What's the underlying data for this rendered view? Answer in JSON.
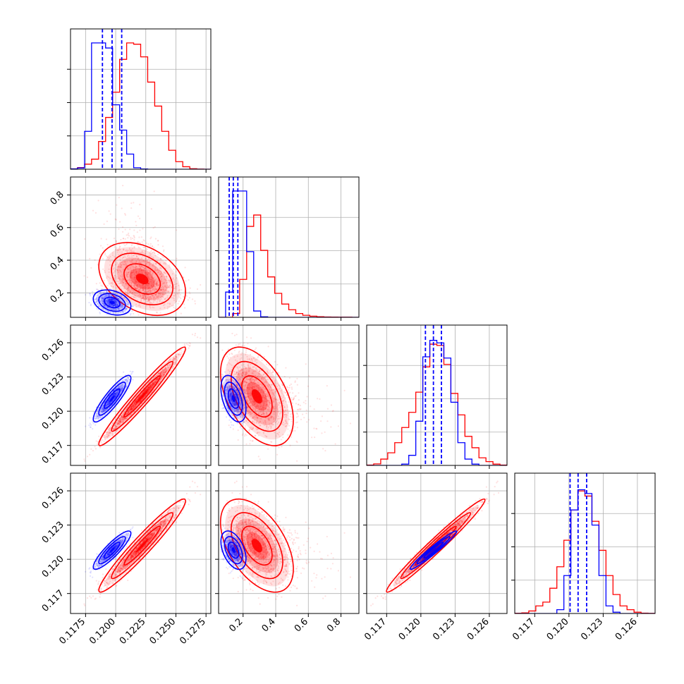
{
  "chart_data": {
    "type": "corner",
    "grid": true,
    "title": "",
    "colors": {
      "blue": "#0000ff",
      "red": "#ff0000",
      "grid": "#b0b0b0",
      "axis": "#000000"
    },
    "series": [
      {
        "color": "#0000ff",
        "quantiles": [
          [
            0.1189,
            0.1197,
            0.1205
          ],
          [
            0.115,
            0.14,
            0.168
          ],
          [
            0.1204,
            0.1211,
            0.1218
          ],
          [
            0.1201,
            0.1208,
            0.12155
          ]
        ]
      },
      {
        "color": "#ff0000"
      }
    ],
    "params": [
      {
        "range": [
          0.11625,
          0.1279
        ],
        "ticks": [
          0.1175,
          0.12,
          0.1225,
          0.125,
          0.1275
        ],
        "ticklabels": [
          "0.1175",
          "0.1200",
          "0.1225",
          "0.1250",
          "0.1275"
        ]
      },
      {
        "range": [
          0.05,
          0.91
        ],
        "ticks": [
          0.2,
          0.4,
          0.6,
          0.8
        ],
        "ticklabels": [
          "0.2",
          "0.4",
          "0.6",
          "0.8"
        ]
      },
      {
        "range": [
          0.11525,
          0.12755
        ],
        "ticks": [
          0.117,
          0.12,
          0.123,
          0.126
        ],
        "ticklabels": [
          "0.117",
          "0.120",
          "0.123",
          "0.126"
        ]
      },
      {
        "range": [
          0.11525,
          0.12755
        ],
        "ticks": [
          0.117,
          0.12,
          0.123,
          0.126
        ],
        "ticklabels": [
          "0.117",
          "0.120",
          "0.123",
          "0.126"
        ]
      }
    ],
    "histograms": [
      {
        "blue": [
          0.003,
          0.01,
          0.3,
          1.0,
          1.0,
          0.96,
          0.51,
          0.31,
          0.12,
          0.012,
          0.002,
          0,
          0,
          0,
          0,
          0,
          0,
          0,
          0,
          0
        ],
        "red": [
          0.003,
          0.013,
          0.04,
          0.08,
          0.22,
          0.41,
          0.61,
          0.87,
          1.0,
          0.99,
          0.89,
          0.69,
          0.5,
          0.3,
          0.15,
          0.06,
          0.02,
          0.004,
          0.001,
          0
        ]
      },
      {
        "blue": [
          0,
          0.2,
          1.0,
          1.0,
          0.52,
          0.05,
          0.004,
          0,
          0,
          0,
          0,
          0,
          0,
          0,
          0,
          0,
          0,
          0,
          0,
          0
        ],
        "red": [
          0,
          0,
          0.03,
          0.3,
          0.72,
          0.81,
          0.53,
          0.32,
          0.19,
          0.105,
          0.06,
          0.03,
          0.016,
          0.009,
          0.005,
          0.003,
          0.002,
          0.001,
          0.001,
          0
        ]
      },
      {
        "blue": [
          0,
          0,
          0,
          0,
          0,
          0.01,
          0.08,
          0.35,
          0.86,
          0.99,
          0.97,
          0.85,
          0.5,
          0.18,
          0.05,
          0.01,
          0,
          0,
          0,
          0
        ],
        "red": [
          0.003,
          0.012,
          0.05,
          0.1,
          0.18,
          0.3,
          0.42,
          0.58,
          0.78,
          0.96,
          0.95,
          0.8,
          0.57,
          0.4,
          0.23,
          0.14,
          0.06,
          0.03,
          0.01,
          0.003
        ]
      },
      {
        "blue": [
          0,
          0,
          0,
          0,
          0,
          0,
          0.03,
          0.3,
          0.82,
          0.98,
          0.95,
          0.7,
          0.3,
          0.06,
          0.01,
          0,
          0,
          0,
          0,
          0
        ],
        "red": [
          0.002,
          0.005,
          0.02,
          0.06,
          0.09,
          0.2,
          0.37,
          0.58,
          0.82,
          0.97,
          0.93,
          0.73,
          0.5,
          0.3,
          0.15,
          0.06,
          0.03,
          0.01,
          0.003,
          0.001
        ]
      }
    ],
    "distributions": {
      "blue": {
        "mean": [
          0.1197,
          0.141,
          0.1211,
          0.1208
        ],
        "sd": [
          0.00065,
          0.032,
          0.00085,
          0.0007
        ],
        "corr": [
          [
            1,
            -0.3,
            0.88,
            0.88
          ],
          [
            -0.3,
            1,
            -0.45,
            -0.45
          ],
          [
            0.88,
            -0.45,
            1,
            0.97
          ],
          [
            0.88,
            -0.45,
            0.97,
            1
          ]
        ]
      },
      "red": {
        "mean": [
          0.1222,
          0.285,
          0.1213,
          0.1212
        ],
        "sd": [
          0.0015,
          0.093,
          0.0018,
          0.0017
        ],
        "corr": [
          [
            1,
            -0.35,
            0.97,
            0.96
          ],
          [
            -0.35,
            1,
            -0.48,
            -0.5
          ],
          [
            0.97,
            -0.48,
            1,
            0.98
          ],
          [
            0.96,
            -0.5,
            0.98,
            1
          ]
        ]
      }
    }
  }
}
